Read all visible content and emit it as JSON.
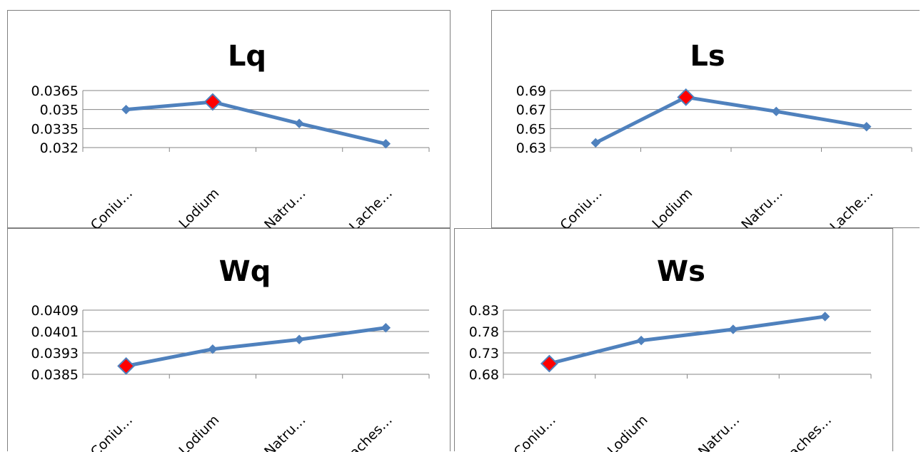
{
  "chart_data": [
    {
      "type": "line",
      "title": "Lq",
      "categories": [
        "Coniu…",
        "Lodium",
        "Natru…",
        "Lache…"
      ],
      "values": [
        0.035,
        0.0356,
        0.0339,
        0.0323
      ],
      "yticks": [
        "0.0365",
        "0.035",
        "0.0335",
        "0.032"
      ],
      "ylim": [
        0.032,
        0.0365
      ],
      "grid": true,
      "highlight_index": 1,
      "line_color": "#4f81bd",
      "highlight_color": "#ff0000"
    },
    {
      "type": "line",
      "title": "Ls",
      "categories": [
        "Coniu…",
        "Lodium",
        "Natru…",
        "Lache…"
      ],
      "values": [
        0.635,
        0.683,
        0.668,
        0.652
      ],
      "yticks": [
        "0.69",
        "0.67",
        "0.65",
        "0.63"
      ],
      "ylim": [
        0.63,
        0.69
      ],
      "grid": true,
      "highlight_index": 1,
      "line_color": "#4f81bd",
      "highlight_color": "#ff0000"
    },
    {
      "type": "line",
      "title": "Wq",
      "categories": [
        "Coniu…",
        "Lodium",
        "Natru…",
        "Laches…"
      ],
      "values": [
        0.03881,
        0.03944,
        0.0398,
        0.04024
      ],
      "yticks": [
        "0.0409",
        "0.0401",
        "0.0393",
        "0.0385"
      ],
      "ylim": [
        0.0385,
        0.0409
      ],
      "grid": true,
      "highlight_index": 0,
      "line_color": "#4f81bd",
      "highlight_color": "#ff0000"
    },
    {
      "type": "line",
      "title": "Ws",
      "categories": [
        "Coniu…",
        "Lodium",
        "Natru…",
        "Laches…"
      ],
      "values": [
        0.705,
        0.759,
        0.785,
        0.815
      ],
      "yticks": [
        "0.83",
        "0.78",
        "0.73",
        "0.68"
      ],
      "ylim": [
        0.68,
        0.83
      ],
      "grid": true,
      "highlight_index": 0,
      "line_color": "#4f81bd",
      "highlight_color": "#ff0000"
    }
  ]
}
